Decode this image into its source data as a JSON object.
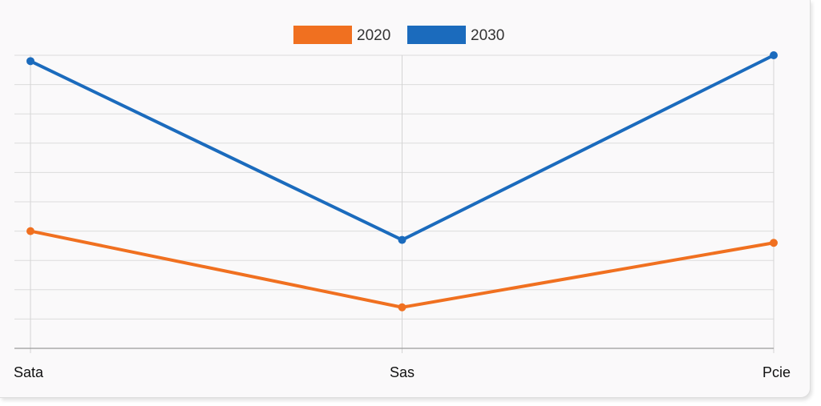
{
  "chart_data": {
    "type": "line",
    "categories": [
      "Sata",
      "Sas",
      "Pcie"
    ],
    "series": [
      {
        "name": "2020",
        "values": [
          4.0,
          1.4,
          3.6
        ],
        "color": "#f07020"
      },
      {
        "name": "2030",
        "values": [
          9.8,
          3.7,
          10.0
        ],
        "color": "#1b6bbd"
      }
    ],
    "ylim": [
      0,
      10
    ],
    "grid": true,
    "legend_position": "top-center",
    "title": "",
    "xlabel": "",
    "ylabel": ""
  }
}
